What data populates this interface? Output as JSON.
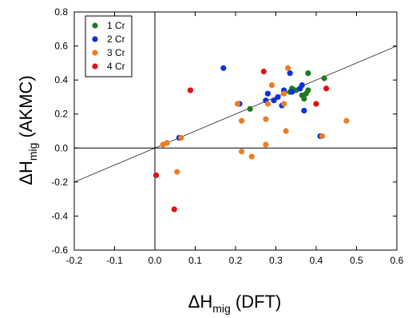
{
  "chart_data": {
    "type": "scatter",
    "title": "",
    "xlabel": {
      "prefix": "ΔH",
      "sub": "mig",
      "suffix": " (DFT)"
    },
    "ylabel": {
      "prefix": "ΔH",
      "sub": "mig",
      "suffix": " (AKMC)"
    },
    "xlim": [
      -0.2,
      0.6
    ],
    "ylim": [
      -0.6,
      0.8
    ],
    "xticks": [
      "-0.2",
      "-0.1",
      "0.0",
      "0.1",
      "0.2",
      "0.3",
      "0.4",
      "0.5",
      "0.6"
    ],
    "yticks": [
      "-0.6",
      "-0.4",
      "-0.2",
      "0.0",
      "0.2",
      "0.4",
      "0.6",
      "0.8"
    ],
    "grid": false,
    "legend_position": "top-left",
    "reference_line": {
      "slope": 1,
      "intercept": 0
    },
    "series": [
      {
        "name": "1 Cr",
        "color": "#1f7a1f",
        "points": [
          [
            0.236,
            0.23
          ],
          [
            0.32,
            0.32
          ],
          [
            0.335,
            0.33
          ],
          [
            0.34,
            0.35
          ],
          [
            0.35,
            0.34
          ],
          [
            0.36,
            0.35
          ],
          [
            0.365,
            0.31
          ],
          [
            0.375,
            0.32
          ],
          [
            0.38,
            0.34
          ],
          [
            0.38,
            0.44
          ],
          [
            0.37,
            0.29
          ],
          [
            0.42,
            0.41
          ]
        ]
      },
      {
        "name": "2 Cr",
        "color": "#1030e0",
        "points": [
          [
            0.06,
            0.06
          ],
          [
            0.17,
            0.47
          ],
          [
            0.21,
            0.26
          ],
          [
            0.275,
            0.28
          ],
          [
            0.28,
            0.32
          ],
          [
            0.295,
            0.28
          ],
          [
            0.305,
            0.3
          ],
          [
            0.315,
            0.25
          ],
          [
            0.32,
            0.33
          ],
          [
            0.32,
            0.34
          ],
          [
            0.335,
            0.44
          ],
          [
            0.34,
            0.33
          ],
          [
            0.36,
            0.35
          ],
          [
            0.365,
            0.37
          ],
          [
            0.37,
            0.22
          ],
          [
            0.41,
            0.07
          ]
        ]
      },
      {
        "name": "3 Cr",
        "color": "#f07c20",
        "points": [
          [
            0.02,
            0.02
          ],
          [
            0.03,
            0.03
          ],
          [
            0.055,
            -0.14
          ],
          [
            0.065,
            0.06
          ],
          [
            0.205,
            0.26
          ],
          [
            0.215,
            0.16
          ],
          [
            0.215,
            -0.02
          ],
          [
            0.24,
            -0.05
          ],
          [
            0.275,
            0.02
          ],
          [
            0.275,
            0.17
          ],
          [
            0.28,
            0.26
          ],
          [
            0.29,
            0.37
          ],
          [
            0.32,
            0.26
          ],
          [
            0.32,
            0.32
          ],
          [
            0.325,
            0.1
          ],
          [
            0.33,
            0.47
          ],
          [
            0.415,
            0.07
          ],
          [
            0.475,
            0.16
          ]
        ]
      },
      {
        "name": "4 Cr",
        "color": "#e01010",
        "points": [
          [
            0.003,
            -0.16
          ],
          [
            0.048,
            -0.36
          ],
          [
            0.088,
            0.34
          ],
          [
            0.27,
            0.45
          ],
          [
            0.4,
            0.26
          ],
          [
            0.425,
            0.35
          ]
        ]
      }
    ]
  }
}
